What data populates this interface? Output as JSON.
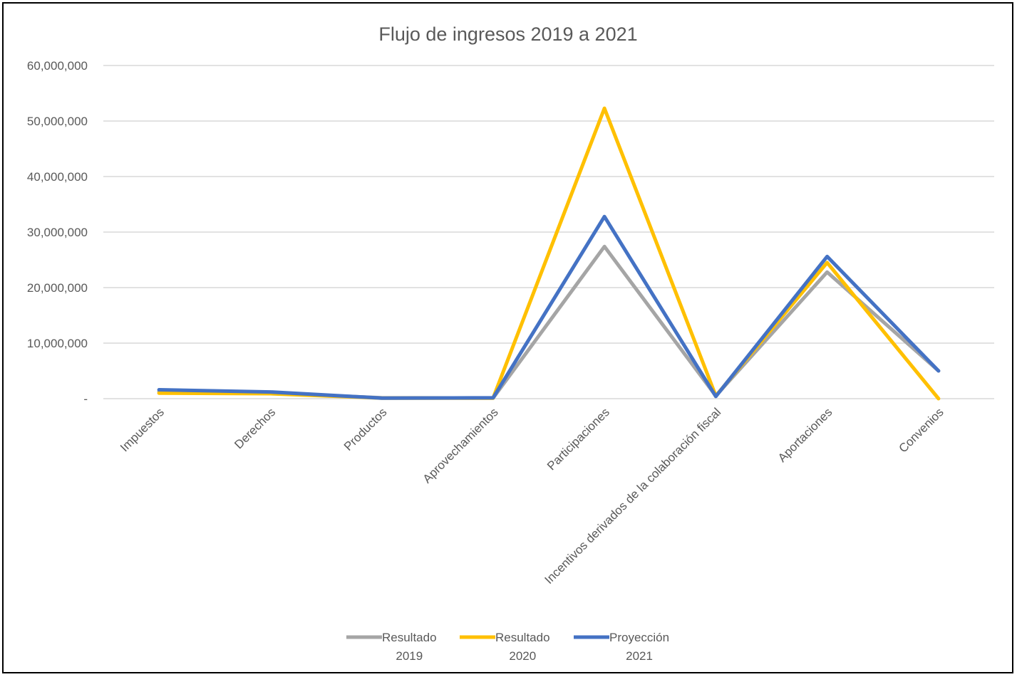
{
  "chart_data": {
    "type": "line",
    "title": "Flujo de ingresos 2019 a 2021",
    "xlabel": "",
    "ylabel": "",
    "ylim": [
      0,
      60000000
    ],
    "yticks": [
      0,
      10000000,
      20000000,
      30000000,
      40000000,
      50000000,
      60000000
    ],
    "ytick_labels": [
      "-",
      "10,000,000",
      "20,000,000",
      "30,000,000",
      "40,000,000",
      "50,000,000",
      "60,000,000"
    ],
    "grid": true,
    "legend_position": "bottom",
    "categories": [
      "Impuestos",
      "Derechos",
      "Productos",
      "Aprovechamientos",
      "Participaciones",
      "Incentivos derivados de la colaboración fiscal",
      "Aportaciones",
      "Convenios"
    ],
    "series": [
      {
        "name": "Resultado 2019",
        "legend_lines": [
          "Resultado",
          "2019"
        ],
        "color": "#A5A5A5",
        "values": [
          1300000,
          1000000,
          150000,
          100000,
          27400000,
          500000,
          22800000,
          5000000
        ]
      },
      {
        "name": "Resultado 2020",
        "legend_lines": [
          "Resultado",
          "2020"
        ],
        "color": "#FFC000",
        "values": [
          1000000,
          900000,
          100000,
          100000,
          52300000,
          500000,
          24500000,
          0
        ]
      },
      {
        "name": "Proyección 2021",
        "legend_lines": [
          "Proyección",
          "2021"
        ],
        "color": "#4472C4",
        "values": [
          1600000,
          1200000,
          100000,
          150000,
          32800000,
          400000,
          25600000,
          5000000
        ]
      }
    ]
  }
}
